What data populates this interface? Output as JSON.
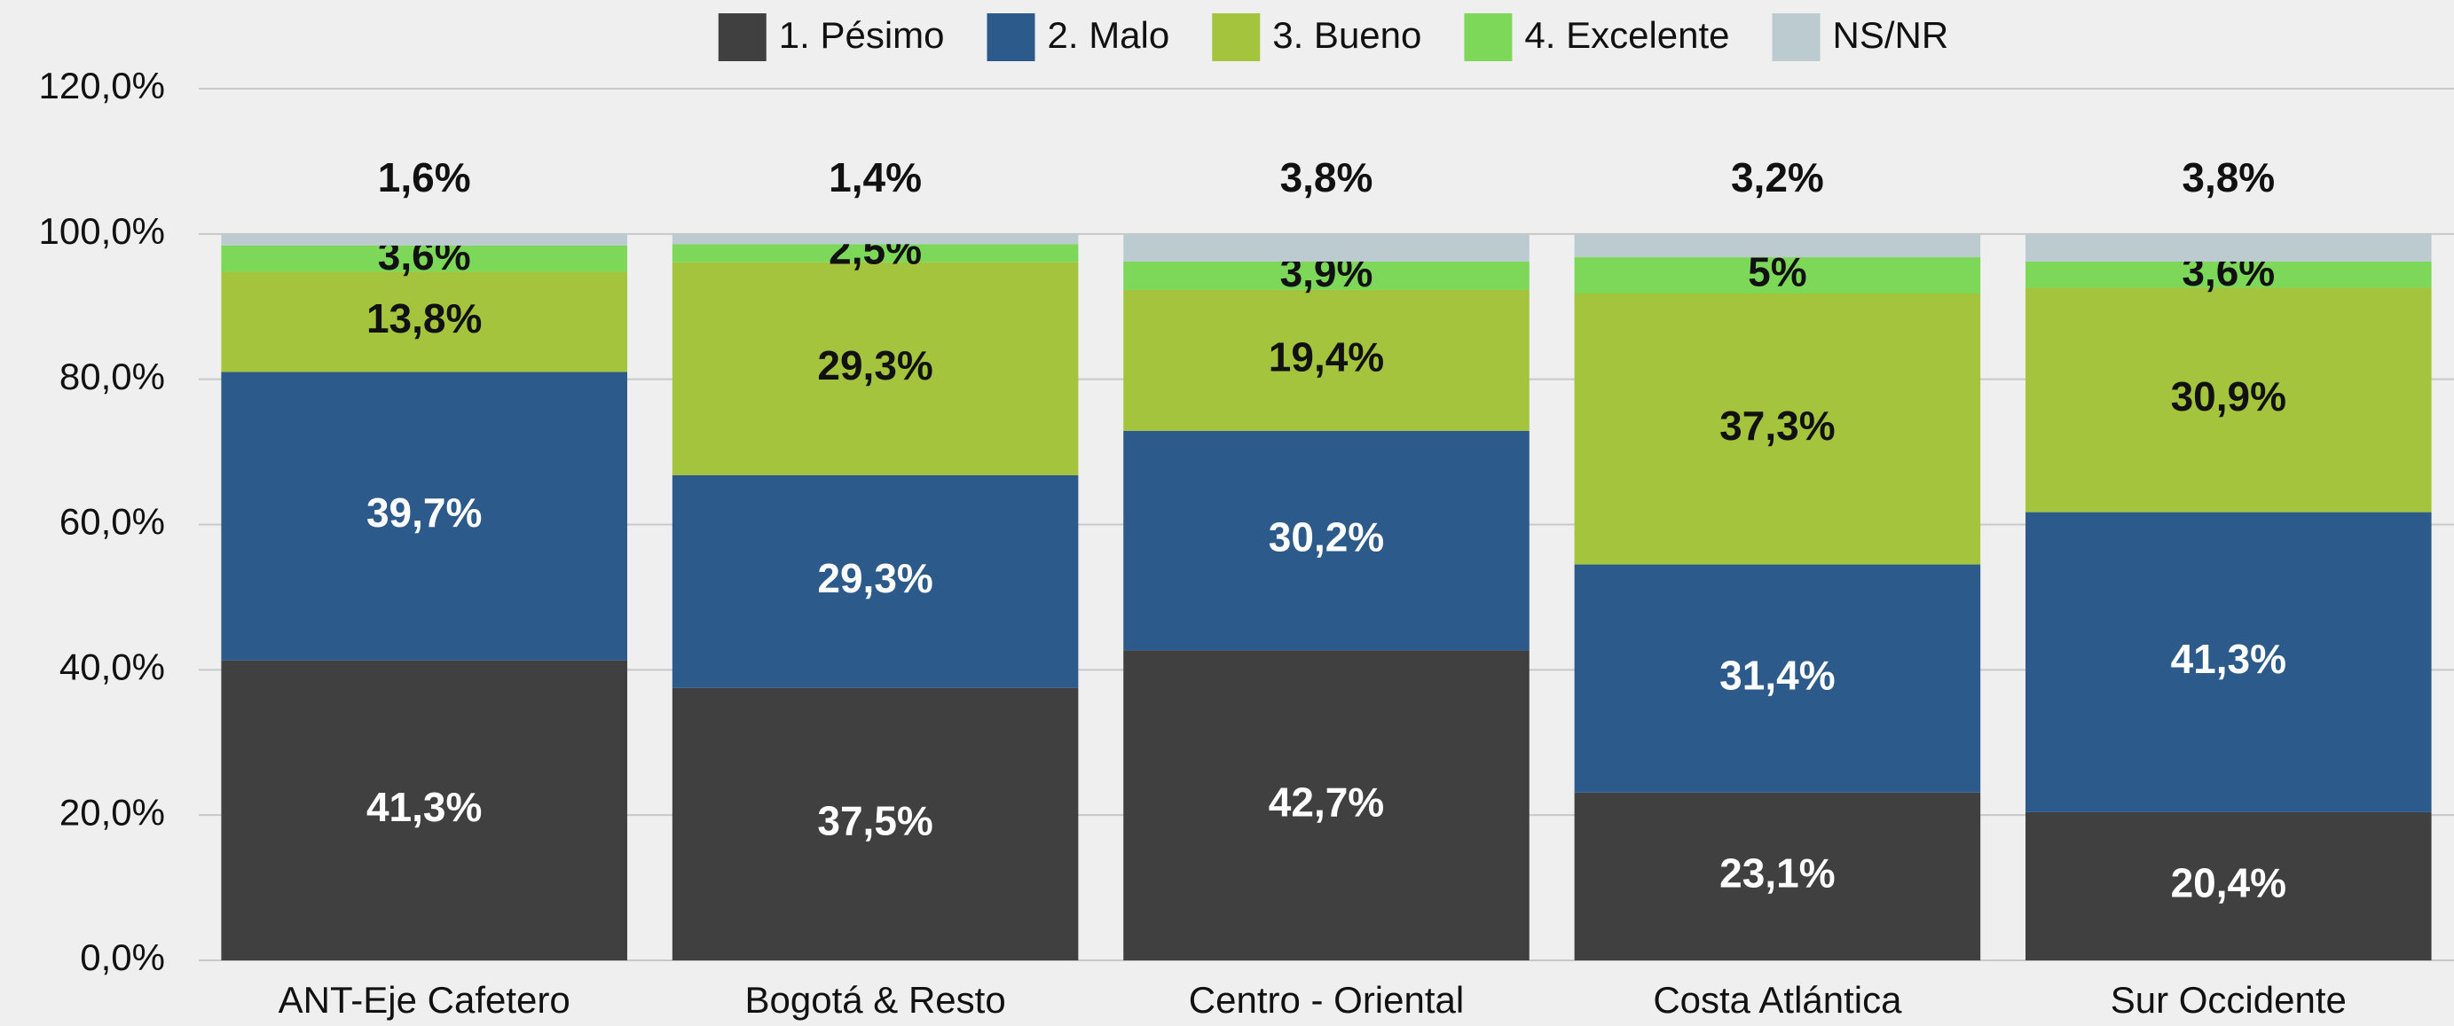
{
  "chart_data": {
    "type": "stacked_bar",
    "categories": [
      "ANT-Eje Cafetero",
      "Bogotá & Resto",
      "Centro - Oriental",
      "Costa Atlántica",
      "Sur Occidente"
    ],
    "series": [
      {
        "name": "1. Pésimo",
        "color": "#404040",
        "values": [
          41.3,
          37.5,
          42.7,
          23.1,
          20.4
        ],
        "value_labels": [
          "41,3%",
          "37,5%",
          "42,7%",
          "23,1%",
          "20,4%"
        ]
      },
      {
        "name": "2. Malo",
        "color": "#2c5a8a",
        "values": [
          39.7,
          29.3,
          30.2,
          31.4,
          41.3
        ],
        "value_labels": [
          "39,7%",
          "29,3%",
          "30,2%",
          "31,4%",
          "41,3%"
        ]
      },
      {
        "name": "3. Bueno",
        "color": "#a3c43c",
        "values": [
          13.8,
          29.3,
          19.4,
          37.3,
          30.9
        ],
        "value_labels": [
          "13,8%",
          "29,3%",
          "19,4%",
          "37,3%",
          "30,9%"
        ]
      },
      {
        "name": "4. Excelente",
        "color": "#7dd85a",
        "values": [
          3.6,
          2.5,
          3.9,
          5,
          3.6
        ],
        "value_labels": [
          "3,6%",
          "2,5%",
          "3,9%",
          "5%",
          "3,6%"
        ]
      },
      {
        "name": "NS/NR",
        "color": "#bccbd0",
        "values": [
          1.6,
          1.4,
          3.8,
          3.2,
          3.8
        ],
        "value_labels": [
          "1,6%",
          "1,4%",
          "3,8%",
          "3,2%",
          "3,8%"
        ]
      }
    ],
    "ylim": [
      0,
      120
    ],
    "yticks": [
      {
        "value": 0,
        "label": "0,0%"
      },
      {
        "value": 20,
        "label": "20,0%"
      },
      {
        "value": 40,
        "label": "40,0%"
      },
      {
        "value": 60,
        "label": "60,0%"
      },
      {
        "value": 80,
        "label": "80,0%"
      },
      {
        "value": 100,
        "label": "100,0%"
      },
      {
        "value": 120,
        "label": "120,0%"
      }
    ],
    "grid": true,
    "legend": "top"
  }
}
